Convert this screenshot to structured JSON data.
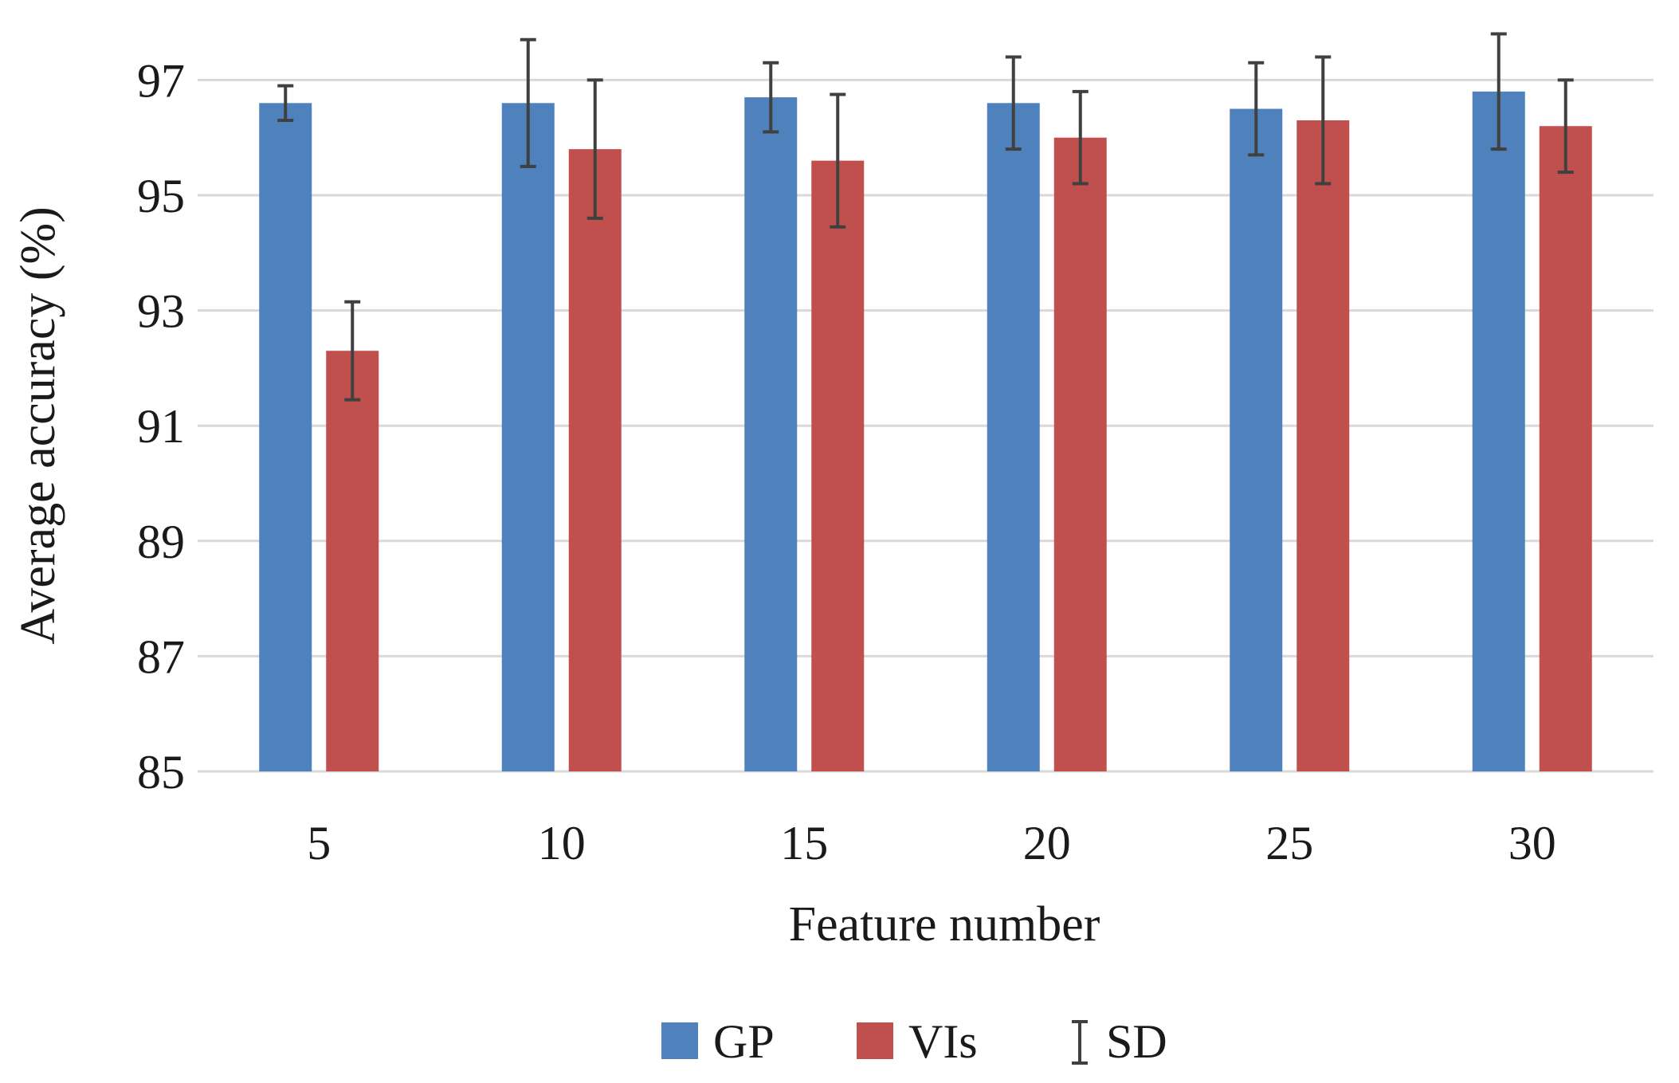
{
  "chart_data": {
    "type": "bar",
    "categories": [
      "5",
      "10",
      "15",
      "20",
      "25",
      "30"
    ],
    "series": [
      {
        "name": "GP",
        "color": "#4f81bd",
        "values": [
          96.6,
          96.6,
          96.7,
          96.6,
          96.5,
          96.8
        ],
        "sd": [
          0.3,
          1.1,
          0.6,
          0.8,
          0.8,
          1.0
        ]
      },
      {
        "name": "VIs",
        "color": "#c0504d",
        "values": [
          92.3,
          95.8,
          95.6,
          96.0,
          96.3,
          96.2
        ],
        "sd": [
          0.85,
          1.2,
          1.15,
          0.8,
          1.1,
          0.8
        ]
      }
    ],
    "error_legend": "SD",
    "xlabel": "Feature number",
    "ylabel": "Average accuracy (%)",
    "ylim": [
      85,
      98
    ],
    "yticks": [
      85,
      87,
      89,
      91,
      93,
      95,
      97
    ],
    "grid": true,
    "legend_position": "bottom"
  }
}
